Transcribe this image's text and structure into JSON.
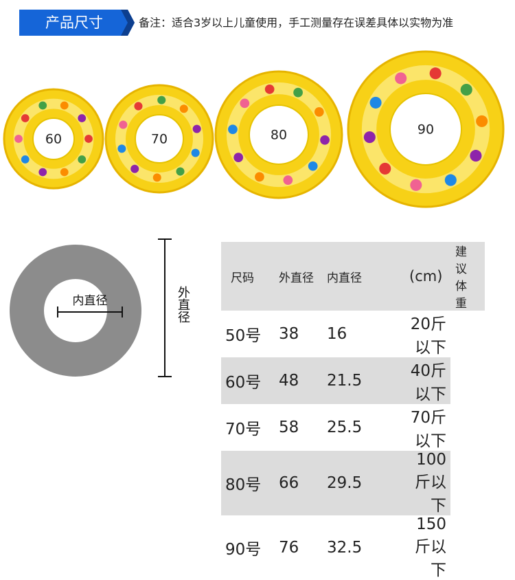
{
  "header": {
    "title": "产品尺寸",
    "note": "备注：适合3岁以上儿童使用，手工测量存在误差具体以实物为准"
  },
  "rings": [
    {
      "label": "60"
    },
    {
      "label": "70"
    },
    {
      "label": "80"
    },
    {
      "label": "90"
    }
  ],
  "diagram": {
    "inner_label": "内直径",
    "outer_label": "外直径"
  },
  "table": {
    "header": [
      "尺码",
      "外直径",
      "内直径",
      "(cm)",
      "建议体重"
    ],
    "rows": [
      [
        "50号",
        38,
        16,
        "20斤以下"
      ],
      [
        "60号",
        48,
        21.5,
        "40斤以下"
      ],
      [
        "70号",
        58,
        25.5,
        "70斤以下"
      ],
      [
        "80号",
        66,
        29.5,
        "100斤以下"
      ],
      [
        "90号",
        76,
        32.5,
        "150斤以下"
      ]
    ]
  }
}
